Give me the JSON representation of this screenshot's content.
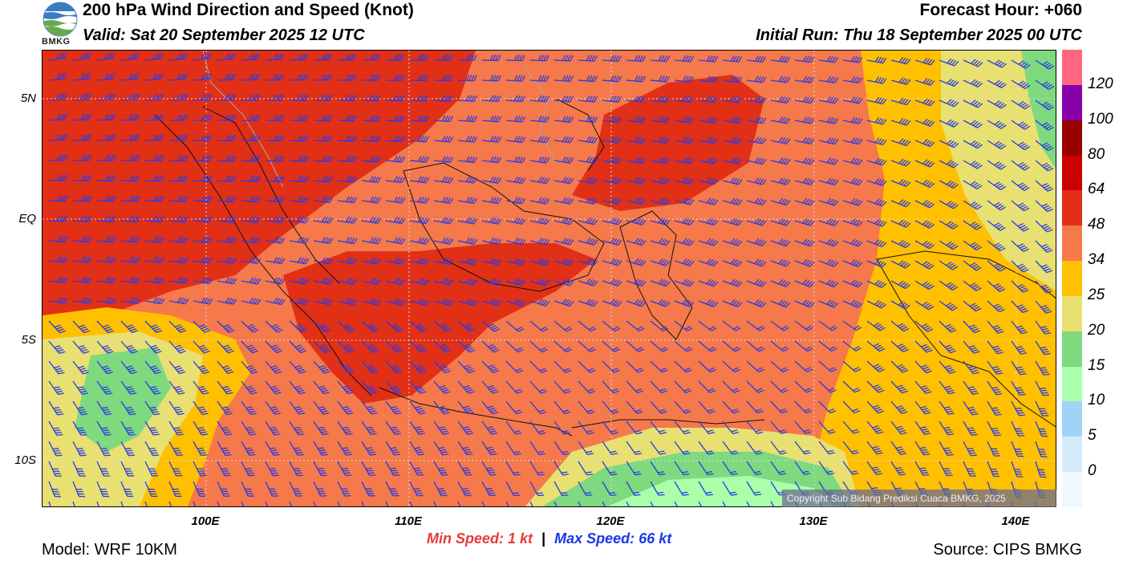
{
  "header": {
    "title": "200 hPa Wind Direction and Speed (Knot)",
    "valid": "Valid: Sat 20 September 2025 12 UTC",
    "forecast_hour": "Forecast Hour: +060",
    "initial_run": "Initial Run: Thu 18 September 2025 00 UTC"
  },
  "logo": {
    "text": "BMKG",
    "icon": "bmkg-logo-icon"
  },
  "axes": {
    "lat_labels": [
      "5N",
      "EQ",
      "5S",
      "10S"
    ],
    "lon_labels": [
      "100E",
      "110E",
      "120E",
      "130E",
      "140E"
    ]
  },
  "colorbar": {
    "labels": [
      "120",
      "100",
      "80",
      "64",
      "48",
      "34",
      "25",
      "20",
      "15",
      "10",
      "5",
      "0"
    ],
    "colors": [
      "#ff6680",
      "#8800aa",
      "#990000",
      "#cc0000",
      "#e23017",
      "#f5794a",
      "#ffc000",
      "#e8e070",
      "#7fd97f",
      "#aaffaa",
      "#9fd3f7",
      "#d4ecfa",
      "#f0f8ff"
    ]
  },
  "copyright": "Copyright Sub Bidang Prediksi Cuaca BMKG, 2025",
  "speed_stats": {
    "min_label": "Min Speed:",
    "min_value": "1 kt",
    "separator": "|",
    "max_label": "Max Speed:",
    "max_value": "66 kt"
  },
  "footer": {
    "model": "Model: WRF 10KM",
    "source": "Source: CIPS BMKG"
  },
  "colors": {
    "barb": "#2b3ce0",
    "coast": "#111111",
    "border": "#aaaaaa"
  }
}
